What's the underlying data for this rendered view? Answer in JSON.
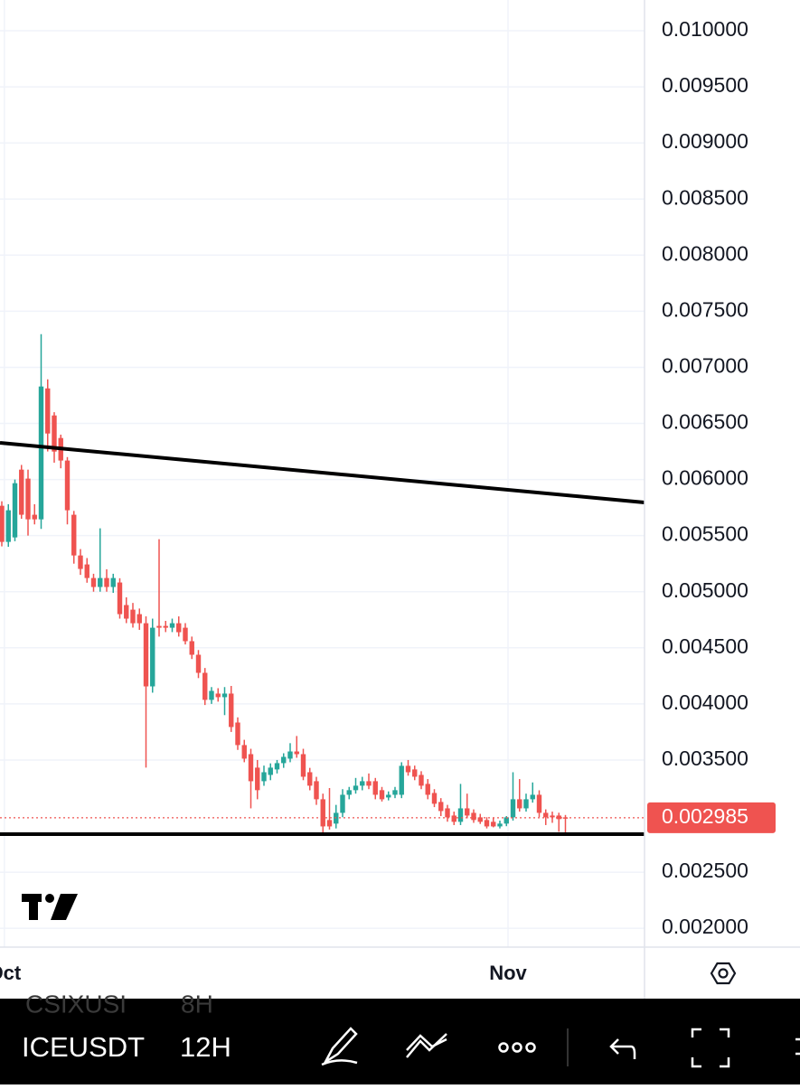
{
  "chart_data": {
    "type": "candlestick",
    "up_color": "#26a69a",
    "down_color": "#ef5350",
    "grid": true,
    "ylim": [
      0.0018322,
      0.010274
    ],
    "yticks": [
      {
        "value": 0.01,
        "label": "0.010000"
      },
      {
        "value": 0.0095,
        "label": "0.009500"
      },
      {
        "value": 0.009,
        "label": "0.009000"
      },
      {
        "value": 0.0085,
        "label": "0.008500"
      },
      {
        "value": 0.008,
        "label": "0.008000"
      },
      {
        "value": 0.0075,
        "label": "0.007500"
      },
      {
        "value": 0.007,
        "label": "0.007000"
      },
      {
        "value": 0.0065,
        "label": "0.006500"
      },
      {
        "value": 0.006,
        "label": "0.006000"
      },
      {
        "value": 0.0055,
        "label": "0.005500"
      },
      {
        "value": 0.005,
        "label": "0.005000"
      },
      {
        "value": 0.0045,
        "label": "0.004500"
      },
      {
        "value": 0.004,
        "label": "0.004000"
      },
      {
        "value": 0.0035,
        "label": "0.003500"
      },
      {
        "value": 0.0025,
        "label": "0.002500"
      },
      {
        "value": 0.002,
        "label": "0.002000"
      }
    ],
    "xlim": [
      -0.276,
      98.07
    ],
    "xticks": [
      {
        "value": 0.4,
        "label": "Oct"
      },
      {
        "value": 77.24,
        "label": "Nov"
      }
    ],
    "last_price": 0.002985,
    "ohlc": [
      [
        0.005766,
        0.005806,
        0.005404,
        0.005444
      ],
      [
        0.005444,
        0.00578,
        0.0054,
        0.005726
      ],
      [
        0.005484,
        0.006,
        0.00545,
        0.005967
      ],
      [
        0.006088,
        0.00613,
        0.00565,
        0.005686
      ],
      [
        0.006008,
        0.006088,
        0.0055,
        0.005645
      ],
      [
        0.005686,
        0.00578,
        0.0056,
        0.005645
      ],
      [
        0.005645,
        0.007296,
        0.00556,
        0.006829
      ],
      [
        0.006812,
        0.006893,
        0.00625,
        0.00641
      ],
      [
        0.006571,
        0.0066,
        0.00615,
        0.006249
      ],
      [
        0.00637,
        0.0064,
        0.0061,
        0.006169
      ],
      [
        0.006169,
        0.0062,
        0.0056,
        0.005726
      ],
      [
        0.005686,
        0.00572,
        0.00525,
        0.005323
      ],
      [
        0.005323,
        0.00538,
        0.00515,
        0.005203
      ],
      [
        0.005243,
        0.0053,
        0.00508,
        0.005122
      ],
      [
        0.005122,
        0.00516,
        0.005,
        0.005042
      ],
      [
        0.005042,
        0.005565,
        0.005,
        0.005122
      ],
      [
        0.005122,
        0.0052,
        0.005,
        0.005042
      ],
      [
        0.005042,
        0.00516,
        0.00499,
        0.005122
      ],
      [
        0.005082,
        0.00512,
        0.00476,
        0.0048
      ],
      [
        0.004881,
        0.00495,
        0.00472,
        0.00476
      ],
      [
        0.00484,
        0.0049,
        0.00468,
        0.004719
      ],
      [
        0.0048,
        0.00485,
        0.00466,
        0.004719
      ],
      [
        0.004719,
        0.00478,
        0.003432,
        0.004156
      ],
      [
        0.004156,
        0.00476,
        0.0041,
        0.004679
      ],
      [
        0.004695,
        0.005468,
        0.0046,
        0.004679
      ],
      [
        0.004695,
        0.00474,
        0.00464,
        0.004679
      ],
      [
        0.004679,
        0.00476,
        0.00464,
        0.004719
      ],
      [
        0.004719,
        0.00478,
        0.0046,
        0.004639
      ],
      [
        0.004679,
        0.00472,
        0.00453,
        0.004559
      ],
      [
        0.004559,
        0.0046,
        0.0044,
        0.004438
      ],
      [
        0.004438,
        0.00448,
        0.00423,
        0.004277
      ],
      [
        0.004277,
        0.00432,
        0.00399,
        0.004036
      ],
      [
        0.004036,
        0.00415,
        0.004,
        0.004116
      ],
      [
        0.004092,
        0.00414,
        0.00402,
        0.00406
      ],
      [
        0.00406,
        0.00415,
        0.0039,
        0.004092
      ],
      [
        0.004092,
        0.00416,
        0.00375,
        0.003794
      ],
      [
        0.003834,
        0.00388,
        0.00359,
        0.003633
      ],
      [
        0.003633,
        0.00368,
        0.00348,
        0.003512
      ],
      [
        0.003552,
        0.0036,
        0.003069,
        0.003311
      ],
      [
        0.003432,
        0.0035,
        0.00315,
        0.003231
      ],
      [
        0.003311,
        0.00345,
        0.00327,
        0.003391
      ],
      [
        0.003367,
        0.00347,
        0.00332,
        0.003432
      ],
      [
        0.003416,
        0.0035,
        0.00338,
        0.003472
      ],
      [
        0.003472,
        0.00356,
        0.00343,
        0.003528
      ],
      [
        0.003512,
        0.00365,
        0.00348,
        0.003576
      ],
      [
        0.003576,
        0.003714,
        0.00352,
        0.003552
      ],
      [
        0.003552,
        0.0036,
        0.00332,
        0.003351
      ],
      [
        0.003391,
        0.00343,
        0.00323,
        0.003271
      ],
      [
        0.003311,
        0.00335,
        0.0031,
        0.00315
      ],
      [
        0.00315,
        0.0032,
        0.002828,
        0.002908
      ],
      [
        0.002965,
        0.00325,
        0.00288,
        0.002908
      ],
      [
        0.002933,
        0.0031,
        0.00289,
        0.003029
      ],
      [
        0.003029,
        0.00324,
        0.00299,
        0.00319
      ],
      [
        0.00319,
        0.00326,
        0.00315,
        0.003231
      ],
      [
        0.003231,
        0.00334,
        0.0032,
        0.003271
      ],
      [
        0.003271,
        0.00335,
        0.00323,
        0.003311
      ],
      [
        0.003311,
        0.00338,
        0.00324,
        0.003271
      ],
      [
        0.003311,
        0.00334,
        0.00315,
        0.00319
      ],
      [
        0.003231,
        0.00326,
        0.00313,
        0.00315
      ],
      [
        0.003166,
        0.00322,
        0.00314,
        0.00319
      ],
      [
        0.00319,
        0.00326,
        0.00316,
        0.003231
      ],
      [
        0.00319,
        0.00348,
        0.00316,
        0.003448
      ],
      [
        0.003448,
        0.0035,
        0.00336,
        0.003391
      ],
      [
        0.003416,
        0.00345,
        0.00332,
        0.003351
      ],
      [
        0.003367,
        0.0034,
        0.00324,
        0.003271
      ],
      [
        0.003287,
        0.00333,
        0.00315,
        0.00319
      ],
      [
        0.003206,
        0.00324,
        0.00308,
        0.00311
      ],
      [
        0.003126,
        0.00316,
        0.003,
        0.003045
      ],
      [
        0.003069,
        0.0031,
        0.00295,
        0.002989
      ],
      [
        0.003005,
        0.00304,
        0.00292,
        0.002949
      ],
      [
        0.002949,
        0.003287,
        0.00292,
        0.003069
      ],
      [
        0.003069,
        0.0032,
        0.00298,
        0.003005
      ],
      [
        0.003029,
        0.00306,
        0.00294,
        0.002965
      ],
      [
        0.002989,
        0.00302,
        0.00293,
        0.002949
      ],
      [
        0.002965,
        0.00299,
        0.00289,
        0.002908
      ],
      [
        0.002949,
        0.00298,
        0.0029,
        0.002908
      ],
      [
        0.002908,
        0.00296,
        0.00289,
        0.002933
      ],
      [
        0.002933,
        0.003,
        0.00291,
        0.002989
      ],
      [
        0.002989,
        0.003391,
        0.00296,
        0.00315
      ],
      [
        0.00315,
        0.00333,
        0.00304,
        0.003069
      ],
      [
        0.003069,
        0.0032,
        0.00304,
        0.00315
      ],
      [
        0.00315,
        0.0033,
        0.00312,
        0.00319
      ],
      [
        0.00319,
        0.00323,
        0.00299,
        0.003029
      ],
      [
        0.003029,
        0.00306,
        0.00292,
        0.002989
      ],
      [
        0.003005,
        0.00304,
        0.00294,
        0.002989
      ],
      [
        0.003005,
        0.00303,
        0.00286,
        0.002973
      ],
      [
        0.002989,
        0.00301,
        0.002828,
        0.002985
      ]
    ]
  },
  "toolbar": {
    "symbol": "ICEUSDT",
    "interval": "12H",
    "ghost_symbol": "CSIXUSI",
    "ghost_interval": "8H"
  }
}
